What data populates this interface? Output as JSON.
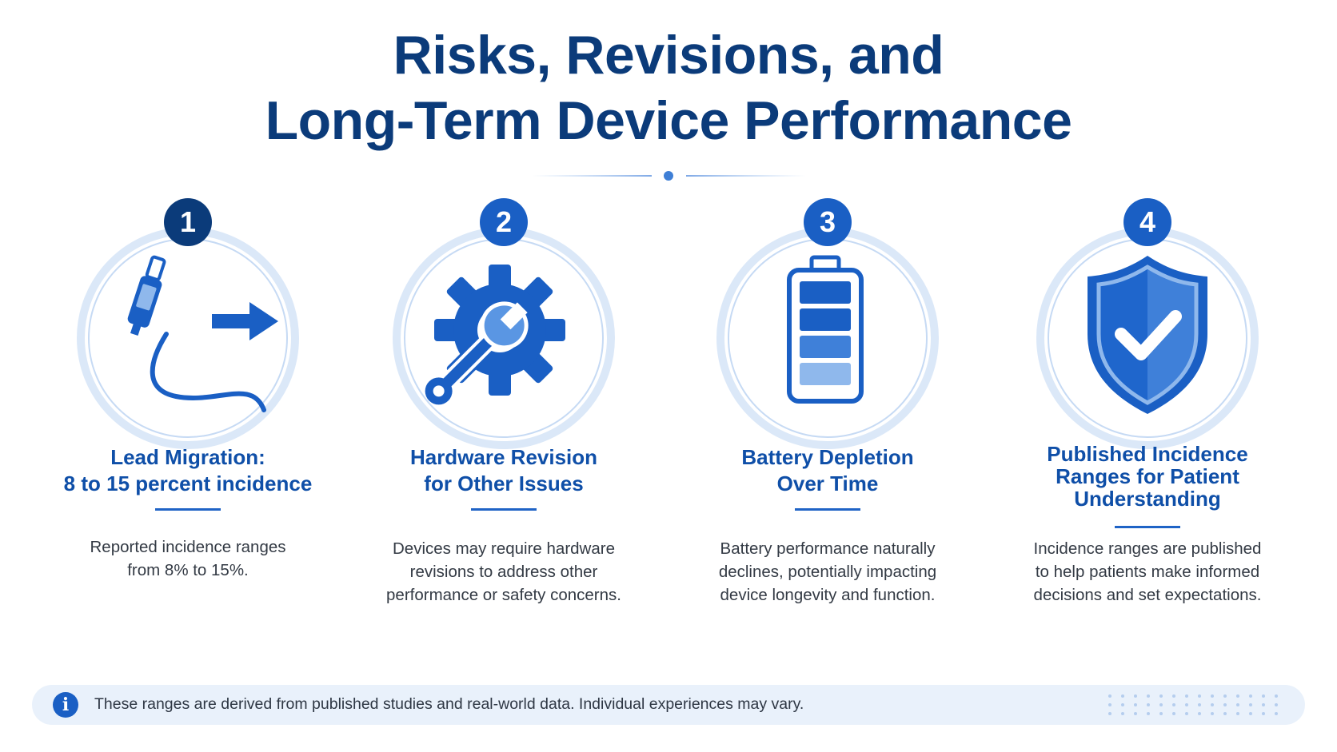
{
  "header": {
    "title_line1": "Risks, Revisions, and",
    "title_line2": "Long-Term Device Performance"
  },
  "colors": {
    "navy": "#0b3b7a",
    "primary": "#1a5fc4",
    "light": "#8fb8ec",
    "ring": "#c9dcf5"
  },
  "cards": [
    {
      "number": "1",
      "icon": "lead-migration-icon",
      "title_lines": [
        "Lead Migration:",
        "8 to 15 percent incidence"
      ],
      "desc_lines": [
        "Reported incidence ranges",
        "from 8% to 15%."
      ]
    },
    {
      "number": "2",
      "icon": "gear-wrench-icon",
      "title_lines": [
        "Hardware Revision",
        "for Other Issues"
      ],
      "desc_lines": [
        "Devices may require hardware",
        "revisions to address other",
        "performance or safety concerns."
      ]
    },
    {
      "number": "3",
      "icon": "battery-icon",
      "title_lines": [
        "Battery Depletion",
        "Over Time"
      ],
      "desc_lines": [
        "Battery performance naturally",
        "declines, potentially impacting",
        "device longevity and function."
      ]
    },
    {
      "number": "4",
      "icon": "shield-check-icon",
      "title_lines": [
        "Published Incidence",
        "Ranges for Patient",
        "Understanding"
      ],
      "desc_lines": [
        "Incidence ranges are published",
        "to help patients make informed",
        "decisions and set expectations."
      ]
    }
  ],
  "footer": {
    "icon": "info-icon",
    "info_glyph": "i",
    "text": "These ranges are derived from published studies and real-world data. Individual experiences may vary."
  }
}
